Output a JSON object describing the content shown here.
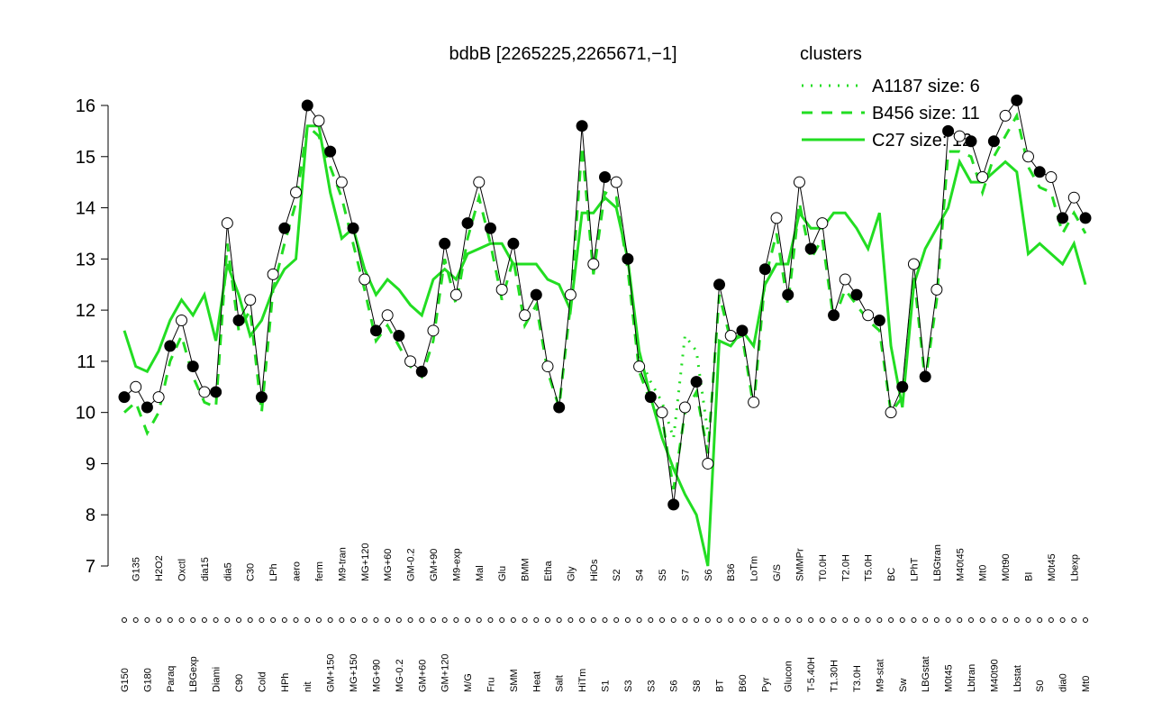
{
  "chart_data": {
    "type": "line",
    "title": "bdbB [2265225,2265671,−1]",
    "legend_title": "clusters",
    "legend_position": "top-right",
    "ylim": [
      7,
      16
    ],
    "yticks": [
      7,
      8,
      9,
      10,
      11,
      12,
      13,
      14,
      15,
      16
    ],
    "grid": false,
    "color": "#000000",
    "categories": [
      "G150",
      "G135",
      "G180",
      "H2O2",
      "Paraq",
      "Oxctl",
      "LBGexp",
      "dia15",
      "Diami",
      "dia5",
      "C90",
      "C30",
      "Cold",
      "LPh",
      "HPh",
      "aero",
      "nit",
      "ferm",
      "GM+150",
      "M9-tran",
      "MG+150",
      "MG+120",
      "MG+90",
      "MG+60",
      "MG-0.2",
      "GM-0.2",
      "GM+60",
      "GM+90",
      "GM+120",
      "M9-exp",
      "M/G",
      "Mal",
      "Fru",
      "Glu",
      "SMM",
      "BMM",
      "Heat",
      "Etha",
      "Salt",
      "Gly",
      "HiTm",
      "HiOs",
      "S1",
      "S2",
      "S3",
      "S4",
      "S3",
      "S5",
      "S6",
      "S7",
      "S8",
      "S6",
      "BT",
      "B36",
      "B60",
      "LoTm",
      "Pyr",
      "G/S",
      "Glucon",
      "SMMPr",
      "T-5.40H",
      "T0.0H",
      "T1.30H",
      "T2.0H",
      "T3.0H",
      "T5.0H",
      "M9-stat",
      "BC",
      "Sw",
      "LPhT",
      "LBGstat",
      "LBGtran",
      "M0t45",
      "M40t45",
      "Lbtran",
      "Mt0",
      "M40t90",
      "M0t90",
      "Lbstat",
      "BI",
      "S0",
      "M0t45",
      "dia0",
      "Lbexp",
      "Mt0"
    ],
    "values": [
      10.3,
      10.5,
      10.1,
      10.3,
      11.3,
      11.8,
      10.9,
      10.4,
      10.4,
      13.7,
      11.8,
      12.2,
      10.3,
      12.7,
      13.6,
      14.3,
      16.0,
      15.7,
      15.1,
      14.5,
      13.6,
      12.6,
      11.6,
      11.9,
      11.5,
      11.0,
      10.8,
      11.6,
      13.3,
      12.3,
      13.7,
      14.5,
      13.6,
      12.4,
      13.3,
      11.9,
      12.3,
      10.9,
      10.1,
      12.3,
      15.6,
      12.9,
      14.6,
      14.5,
      13.0,
      10.9,
      10.3,
      10.0,
      8.2,
      10.1,
      10.6,
      9.0,
      12.5,
      11.5,
      11.6,
      10.2,
      12.8,
      13.8,
      12.3,
      14.5,
      13.2,
      13.7,
      11.9,
      12.6,
      12.3,
      11.9,
      11.8,
      10.0,
      10.5,
      12.9,
      10.7,
      12.4,
      15.5,
      15.4,
      15.3,
      14.6,
      15.3,
      15.8,
      16.1,
      15.0,
      14.7,
      14.6,
      13.8,
      14.2,
      13.8
    ],
    "series": [
      {
        "name": "A1187 size: 6",
        "color": "#22dd22",
        "dash": "dotted",
        "values": [
          null,
          null,
          null,
          null,
          null,
          null,
          null,
          null,
          null,
          null,
          null,
          null,
          null,
          null,
          null,
          null,
          null,
          null,
          null,
          null,
          null,
          null,
          null,
          null,
          null,
          null,
          null,
          null,
          null,
          null,
          null,
          null,
          null,
          null,
          null,
          null,
          null,
          null,
          null,
          null,
          null,
          null,
          null,
          null,
          null,
          11.1,
          10.6,
          10.2,
          9.5,
          11.5,
          11.2,
          9.6,
          null,
          null,
          null,
          null,
          null,
          null,
          null,
          null,
          null,
          null,
          null,
          null,
          null,
          null,
          null,
          null,
          null,
          null,
          null,
          null,
          null,
          null,
          null,
          null,
          null,
          null,
          null,
          null,
          null,
          null,
          null,
          null,
          null
        ]
      },
      {
        "name": "B456 size: 11",
        "color": "#22dd22",
        "dash": "dashed",
        "values": [
          10.0,
          10.2,
          9.6,
          10.0,
          11.0,
          11.5,
          10.7,
          10.2,
          10.1,
          13.3,
          11.6,
          12.0,
          10.0,
          12.4,
          13.3,
          14.1,
          15.6,
          15.4,
          14.8,
          14.2,
          13.3,
          12.4,
          11.4,
          11.7,
          11.3,
          10.9,
          10.7,
          11.4,
          13.0,
          12.1,
          13.4,
          14.2,
          13.3,
          12.2,
          13.0,
          11.7,
          12.1,
          10.8,
          10.1,
          12.1,
          15.2,
          12.7,
          14.3,
          14.2,
          12.8,
          10.8,
          10.2,
          9.9,
          8.5,
          10.0,
          10.4,
          9.2,
          12.3,
          11.4,
          11.5,
          10.1,
          12.6,
          13.5,
          12.1,
          14.1,
          13.0,
          13.4,
          11.8,
          12.4,
          12.1,
          11.8,
          11.6,
          10.0,
          10.3,
          12.7,
          10.6,
          12.2,
          15.1,
          15.1,
          15.0,
          14.3,
          15.0,
          15.4,
          15.8,
          14.8,
          14.4,
          14.3,
          13.5,
          13.9,
          13.5
        ]
      },
      {
        "name": "C27 size: 12",
        "color": "#22dd22",
        "dash": "solid",
        "values": [
          11.6,
          10.9,
          10.8,
          11.2,
          11.8,
          12.2,
          11.9,
          12.3,
          11.4,
          12.9,
          12.3,
          11.5,
          11.8,
          12.4,
          12.8,
          13.0,
          15.6,
          15.6,
          14.3,
          13.4,
          13.6,
          12.8,
          12.3,
          12.6,
          12.4,
          12.1,
          11.9,
          12.6,
          12.8,
          12.6,
          13.1,
          13.2,
          13.3,
          13.3,
          12.9,
          12.9,
          12.9,
          12.6,
          12.5,
          12.0,
          13.9,
          13.9,
          14.2,
          14.0,
          13.0,
          11.2,
          10.3,
          9.5,
          8.9,
          8.4,
          8.0,
          7.0,
          11.4,
          11.3,
          11.6,
          11.3,
          12.5,
          12.9,
          12.9,
          13.9,
          13.6,
          13.6,
          13.9,
          13.9,
          13.6,
          13.2,
          13.9,
          11.3,
          10.1,
          12.5,
          13.2,
          13.6,
          14.0,
          14.9,
          14.5,
          14.5,
          14.7,
          14.9,
          14.7,
          13.1,
          13.3,
          13.1,
          12.9,
          13.3,
          12.5
        ]
      }
    ]
  }
}
